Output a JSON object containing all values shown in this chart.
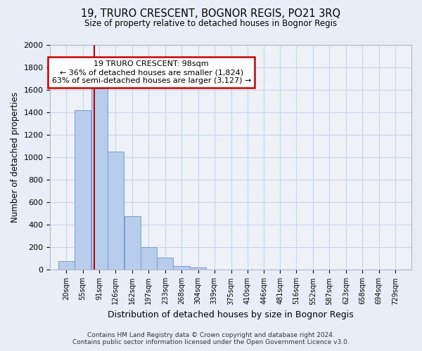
{
  "title1": "19, TRURO CRESCENT, BOGNOR REGIS, PO21 3RQ",
  "title2": "Size of property relative to detached houses in Bognor Regis",
  "xlabel": "Distribution of detached houses by size in Bognor Regis",
  "ylabel": "Number of detached properties",
  "footer1": "Contains HM Land Registry data © Crown copyright and database right 2024.",
  "footer2": "Contains public sector information licensed under the Open Government Licence v3.0.",
  "bin_starts": [
    20,
    55,
    91,
    126,
    162,
    197,
    233,
    268,
    304,
    339,
    375,
    410,
    446,
    481,
    516,
    552,
    587,
    623,
    658,
    694
  ],
  "bin_width": 35,
  "bin_labels": [
    "20sqm",
    "55sqm",
    "91sqm",
    "126sqm",
    "162sqm",
    "197sqm",
    "233sqm",
    "268sqm",
    "304sqm",
    "339sqm",
    "375sqm",
    "410sqm",
    "446sqm",
    "481sqm",
    "516sqm",
    "552sqm",
    "587sqm",
    "623sqm",
    "658sqm",
    "694sqm",
    "729sqm"
  ],
  "bar_heights": [
    80,
    1420,
    1610,
    1050,
    480,
    200,
    110,
    35,
    20,
    0,
    0,
    0,
    0,
    0,
    0,
    0,
    0,
    0,
    0,
    0
  ],
  "bar_color": "#b8ccec",
  "bar_edge_color": "#6fa0d0",
  "property_line_x": 98,
  "annotation_line1": "19 TRURO CRESCENT: 98sqm",
  "annotation_line2": "← 36% of detached houses are smaller (1,824)",
  "annotation_line3": "63% of semi-detached houses are larger (3,127) →",
  "annotation_box_color": "#ffffff",
  "annotation_box_edge": "#cc0000",
  "vline_color": "#cc0000",
  "ylim": [
    0,
    2000
  ],
  "yticks": [
    0,
    200,
    400,
    600,
    800,
    1000,
    1200,
    1400,
    1600,
    1800,
    2000
  ],
  "grid_color": "#c8d4e8",
  "fig_background": "#e8eef8",
  "plot_background": "#eef2f8"
}
